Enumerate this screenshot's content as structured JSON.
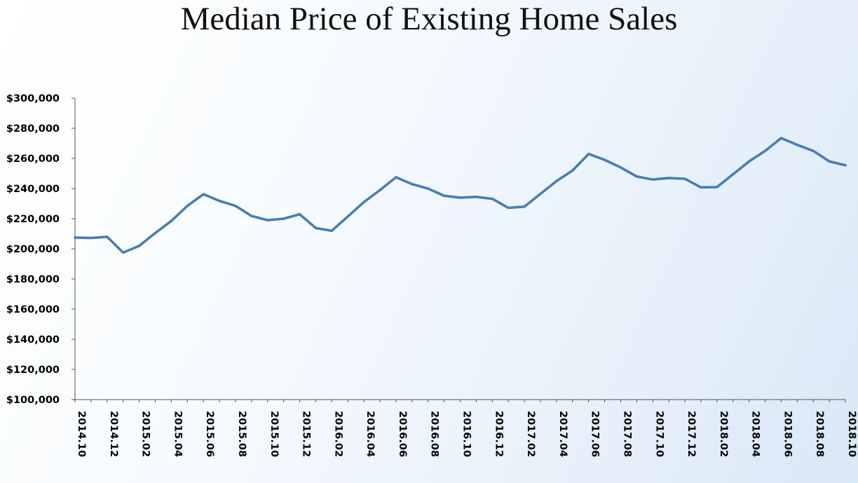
{
  "chart_data": {
    "type": "line",
    "title": "Median Price of Existing Home Sales",
    "xlabel": "",
    "ylabel": "",
    "ylim": [
      100000,
      300000
    ],
    "y_ticks": [
      "$100,000",
      "$120,000",
      "$140,000",
      "$160,000",
      "$180,000",
      "$200,000",
      "$220,000",
      "$240,000",
      "$260,000",
      "$280,000",
      "$300,000"
    ],
    "x": [
      "2014.10",
      "2014.11",
      "2014.12",
      "2015.01",
      "2015.02",
      "2015.03",
      "2015.04",
      "2015.05",
      "2015.06",
      "2015.07",
      "2015.08",
      "2015.09",
      "2015.10",
      "2015.11",
      "2015.12",
      "2016.01",
      "2016.02",
      "2016.03",
      "2016.04",
      "2016.05",
      "2016.06",
      "2016.07",
      "2016.08",
      "2016.09",
      "2016.10",
      "2016.11",
      "2016.12",
      "2017.01",
      "2017.02",
      "2017.03",
      "2017.04",
      "2017.05",
      "2017.06",
      "2017.07",
      "2017.08",
      "2017.09",
      "2017.10",
      "2017.11",
      "2017.12",
      "2018.01",
      "2018.02",
      "2018.03",
      "2018.04",
      "2018.05",
      "2018.06",
      "2018.07",
      "2018.08",
      "2018.09",
      "2018.10"
    ],
    "x_tick_labels": [
      "2014.10",
      "2014.12",
      "2015.02",
      "2015.04",
      "2015.06",
      "2015.08",
      "2015.10",
      "2015.12",
      "2016.02",
      "2016.04",
      "2016.06",
      "2016.08",
      "2016.10",
      "2016.12",
      "2017.02",
      "2017.04",
      "2017.06",
      "2017.08",
      "2017.10",
      "2017.12",
      "2018.02",
      "2018.04",
      "2018.06",
      "2018.08",
      "2018.10"
    ],
    "series": [
      {
        "values": [
          207500,
          207200,
          208000,
          197500,
          202000,
          210500,
          218500,
          228500,
          236300,
          231800,
          228500,
          221800,
          219000,
          220000,
          223000,
          213800,
          212000,
          221500,
          231000,
          239000,
          247500,
          243000,
          240000,
          235200,
          234000,
          234500,
          233200,
          227200,
          228000,
          236500,
          245000,
          252000,
          263000,
          259000,
          254000,
          248000,
          246000,
          247000,
          246500,
          240800,
          241000,
          249500,
          258000,
          265000,
          273500,
          269000,
          265000,
          258000,
          255500
        ],
        "color": "#4a7db3"
      }
    ],
    "grid": false,
    "legend": "none"
  }
}
